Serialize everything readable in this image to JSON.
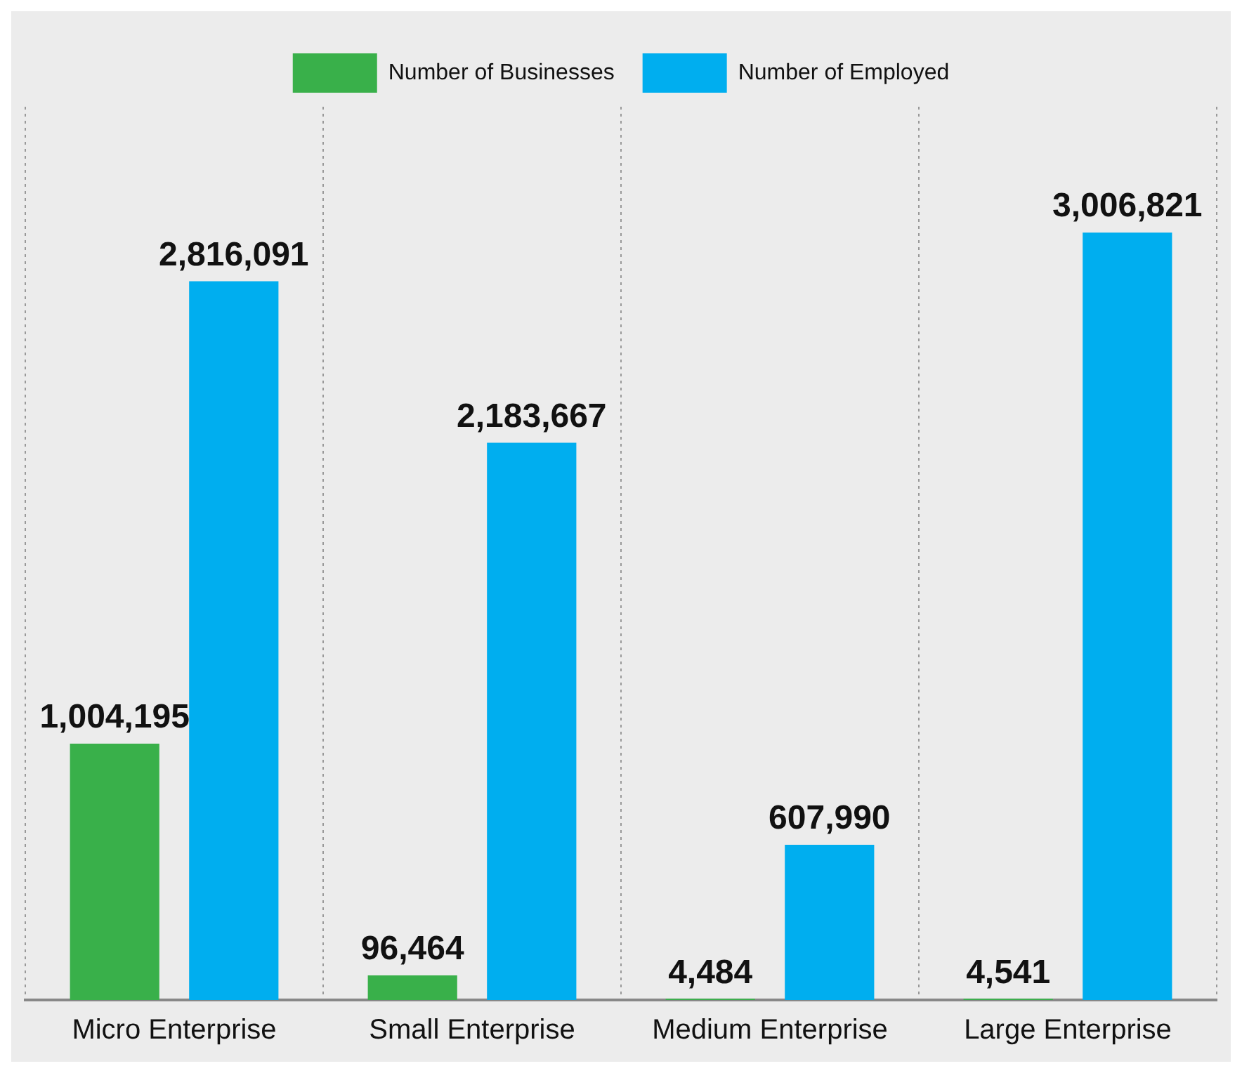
{
  "chart_data": {
    "type": "bar",
    "categories": [
      "Micro Enterprise",
      "Small Enterprise",
      "Medium Enterprise",
      "Large Enterprise"
    ],
    "series": [
      {
        "name": "Number of Businesses",
        "color": "#39b04a",
        "values": [
          1004195,
          96464,
          4484,
          4541
        ],
        "value_labels": [
          "1,004,195",
          "96,464",
          "4,484",
          "4,541"
        ]
      },
      {
        "name": "Number of Employed",
        "color": "#00aeef",
        "values": [
          2816091,
          2183667,
          607990,
          3006821
        ],
        "value_labels": [
          "2,816,091",
          "2,183,667",
          "607,990",
          "3,006,821"
        ]
      }
    ],
    "legend": "top",
    "grid": "x"
  }
}
